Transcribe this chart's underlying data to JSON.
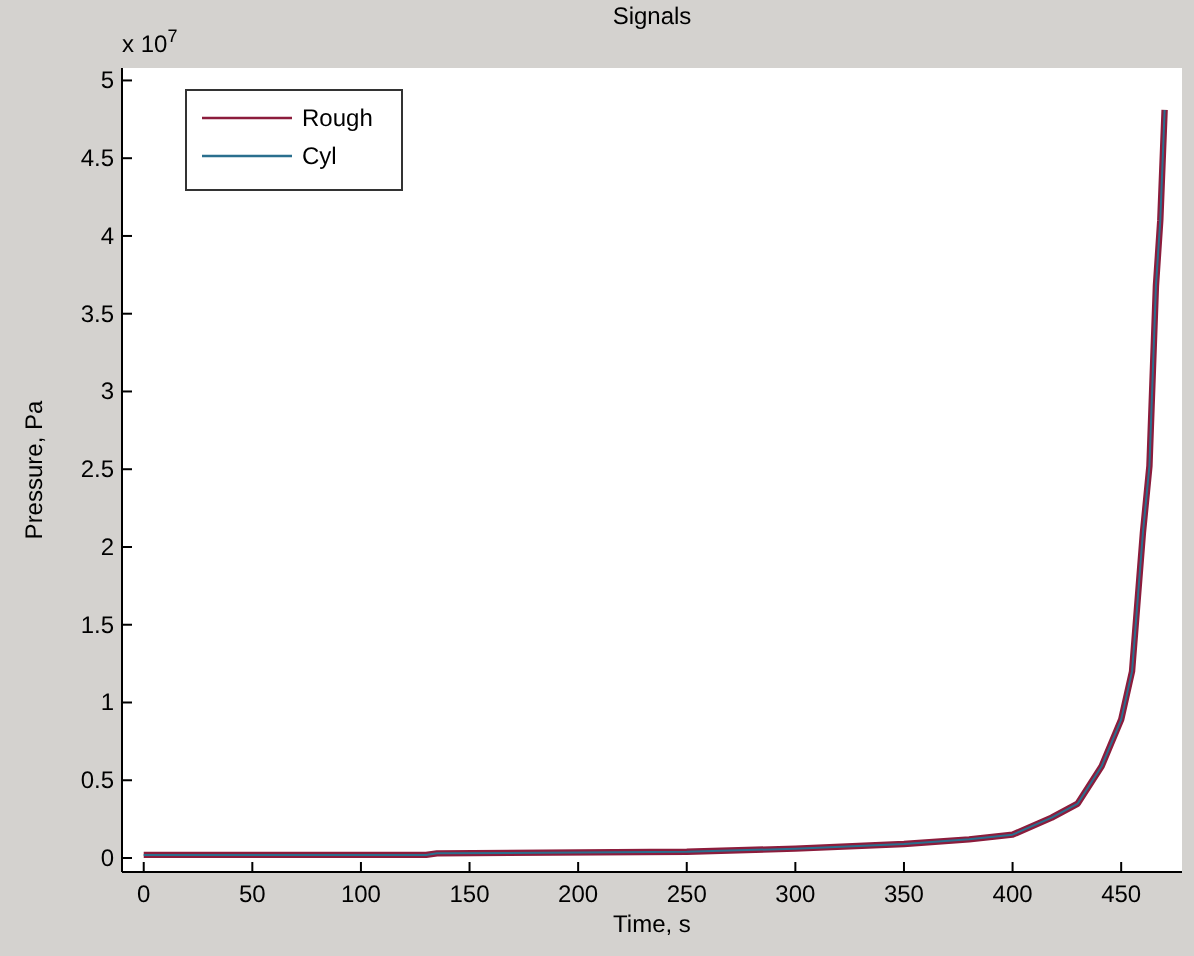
{
  "chart_data": {
    "type": "line",
    "title": "Signals",
    "xlabel": "Time, s",
    "ylabel": "Pressure, Pa",
    "annotations": [
      "x 10$^{7}$"
    ],
    "xlim": [
      -10,
      478
    ],
    "xticks": [
      0,
      50,
      100,
      150,
      200,
      250,
      300,
      350,
      400,
      450
    ],
    "ylim": [
      -0.09,
      5.08
    ],
    "yticks": [
      0,
      0.5,
      1,
      1.5,
      2,
      2.5,
      3,
      3.5,
      4,
      4.5,
      5
    ],
    "grid": false,
    "legend": "top left",
    "line_style": "solid",
    "marker": "none",
    "series": [
      {
        "name": "Rough",
        "color": "#8c1c3c",
        "x": [
          0,
          130,
          135,
          250,
          300,
          350,
          380,
          400,
          418,
          430,
          441,
          450,
          455,
          460,
          463,
          466,
          468,
          470
        ],
        "values": [
          0.02,
          0.02,
          0.03,
          0.04,
          0.06,
          0.09,
          0.12,
          0.15,
          0.26,
          0.35,
          0.59,
          0.89,
          1.2,
          2.09,
          2.52,
          3.68,
          4.1,
          4.81
        ]
      },
      {
        "name": "Cyl",
        "color": "#2a6f8e",
        "x": [
          0,
          130,
          135,
          250,
          300,
          350,
          380,
          400,
          418,
          430,
          441,
          450,
          455,
          460,
          463,
          466,
          468,
          470
        ],
        "values": [
          0.02,
          0.02,
          0.03,
          0.04,
          0.06,
          0.09,
          0.12,
          0.15,
          0.26,
          0.35,
          0.59,
          0.89,
          1.2,
          2.09,
          2.52,
          3.68,
          4.1,
          4.81
        ]
      }
    ]
  }
}
